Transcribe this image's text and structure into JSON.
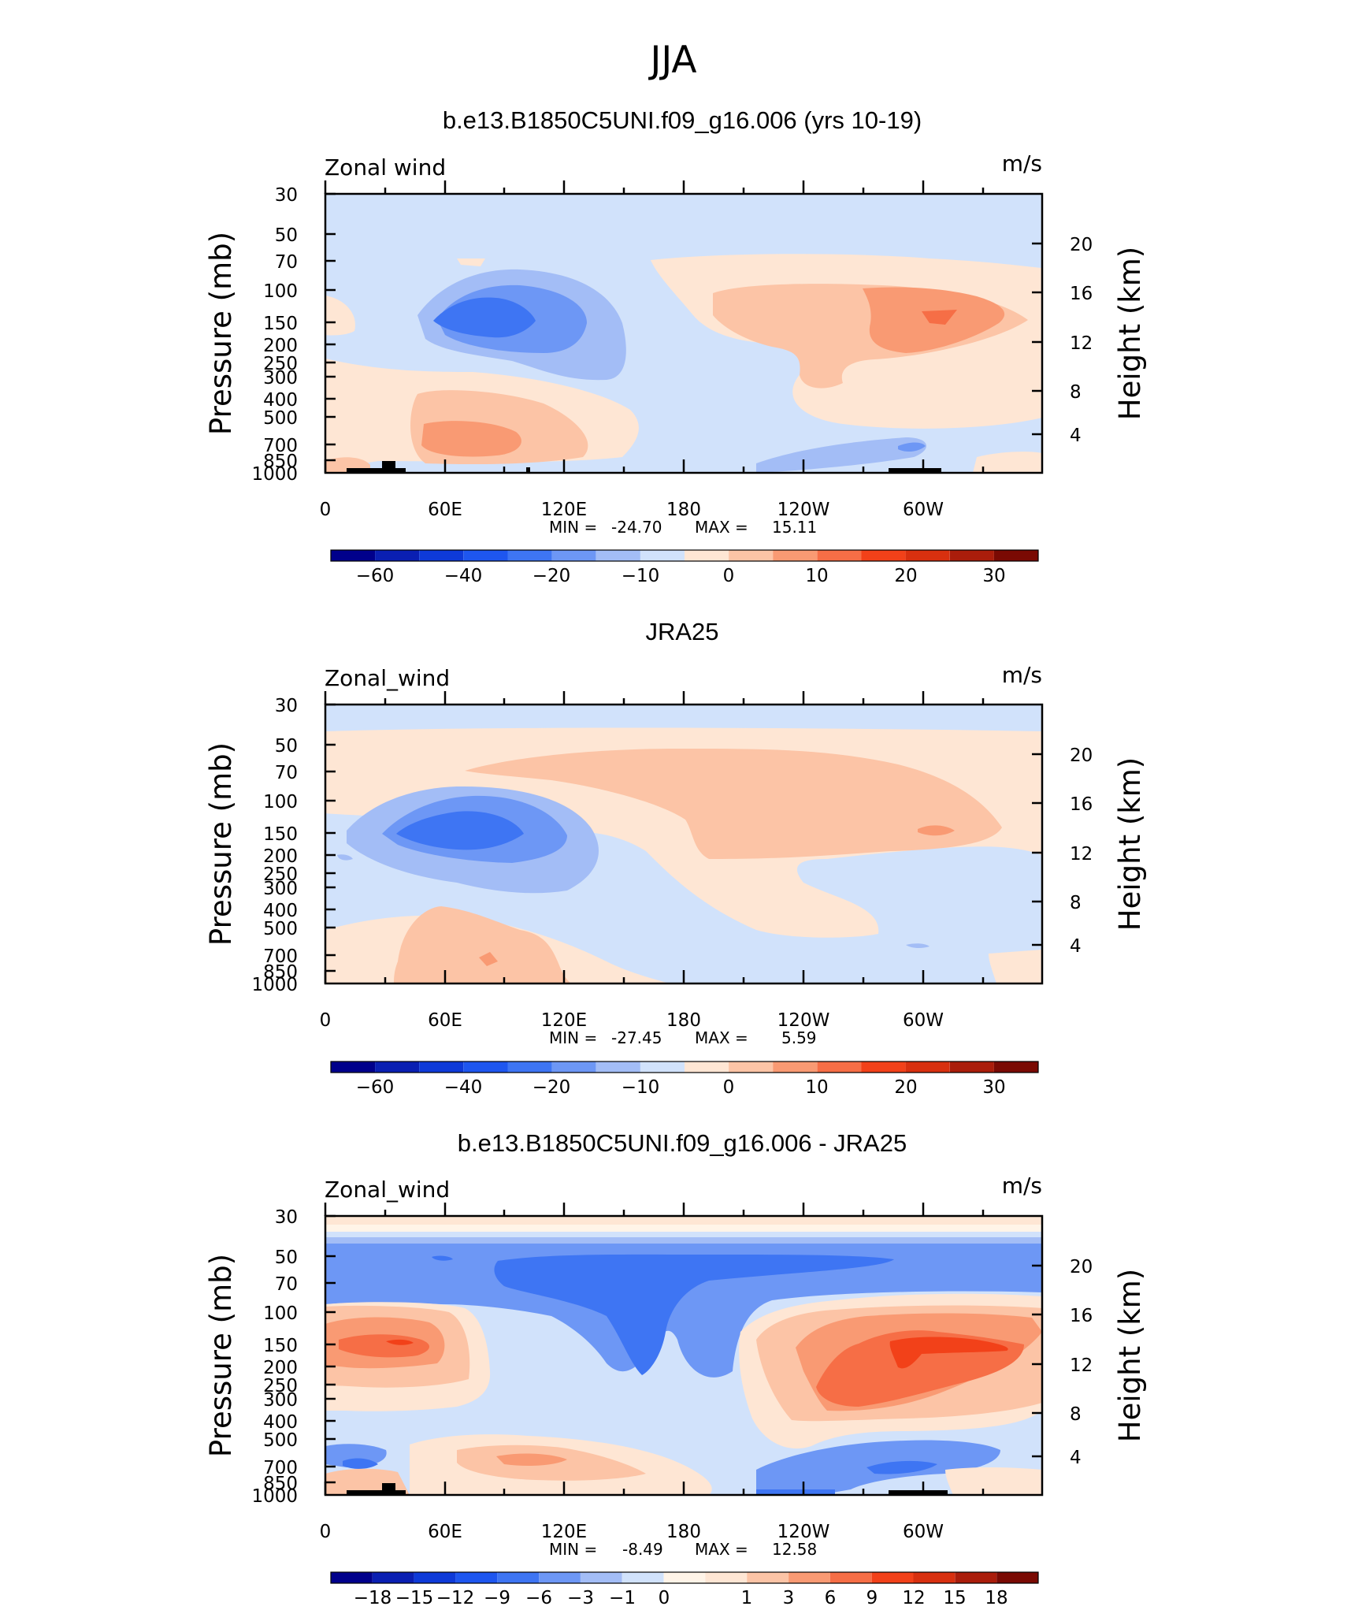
{
  "page_title": "JJA",
  "colors": {
    "std_levels": [
      "#00008b",
      "#0a1fb2",
      "#0e3ad8",
      "#1e56ef",
      "#3e75f3",
      "#6d97f5",
      "#a3bdf6",
      "#d1e2fb",
      "#fee6d4",
      "#fcc4a6",
      "#f99a73",
      "#f66e46",
      "#f24119",
      "#d8300f",
      "#aa1d0b",
      "#7a0a03"
    ],
    "diff_levels": [
      "#00008b",
      "#0a1fb2",
      "#0e3ad8",
      "#1e56ef",
      "#3e75f3",
      "#6d97f5",
      "#a3bdf6",
      "#d1e2fb",
      "#fff4e8",
      "#fee6d4",
      "#fcc4a6",
      "#f99a73",
      "#f66e46",
      "#f24119",
      "#d8300f",
      "#aa1d0b",
      "#7a0a03"
    ]
  },
  "panels": [
    {
      "title": "b.e13.B1850C5UNI.f09_g16.006 (yrs 10-19)",
      "left_label": "Zonal wind",
      "right_label": "m/s",
      "stats": {
        "min_label": "MIN =",
        "min": "-24.70",
        "max_label": "MAX =",
        "max": "15.11"
      },
      "colorbar_labels": [
        "−60",
        "−40",
        "−20",
        "−10",
        "0",
        "10",
        "20",
        "30"
      ]
    },
    {
      "title": "JRA25",
      "left_label": "Zonal_wind",
      "right_label": "m/s",
      "stats": {
        "min_label": "MIN =",
        "min": "-27.45",
        "max_label": "MAX =",
        "max": "5.59"
      },
      "colorbar_labels": [
        "−60",
        "−40",
        "−20",
        "−10",
        "0",
        "10",
        "20",
        "30"
      ]
    },
    {
      "title": "b.e13.B1850C5UNI.f09_g16.006 - JRA25",
      "left_label": "Zonal_wind",
      "right_label": "m/s",
      "stats": {
        "min_label": "MIN =",
        "min": "-8.49",
        "max_label": "MAX =",
        "max": "12.58"
      },
      "colorbar_labels": [
        "−18",
        "−15",
        "−12",
        "−9",
        "−6",
        "−3",
        "−1",
        "0",
        "1",
        "3",
        "6",
        "9",
        "12",
        "15",
        "18"
      ]
    }
  ],
  "chart_data": {
    "type": "heatmap",
    "ylabel_left": "Pressure (mb)",
    "ylabel_right": "Height (km)",
    "x_tick_labels": [
      "0",
      "60E",
      "120E",
      "180",
      "120W",
      "60W"
    ],
    "y_tick_labels": [
      "30",
      "50",
      "70",
      "100",
      "150",
      "200",
      "250",
      "300",
      "400",
      "500",
      "700",
      "850",
      "1000"
    ],
    "y_right_tick_labels": [
      "20",
      "16",
      "12",
      "8",
      "4"
    ],
    "y_pressure_levels": [
      30,
      50,
      70,
      100,
      150,
      200,
      250,
      300,
      400,
      500,
      700,
      850,
      1000
    ],
    "y_height_km": [
      20,
      16,
      12,
      8,
      4
    ],
    "x_range_deg": [
      0,
      360
    ],
    "panels": [
      {
        "min": -24.7,
        "max": 15.11
      },
      {
        "min": -27.45,
        "max": 5.59
      },
      {
        "min": -8.49,
        "max": 12.58
      }
    ]
  }
}
